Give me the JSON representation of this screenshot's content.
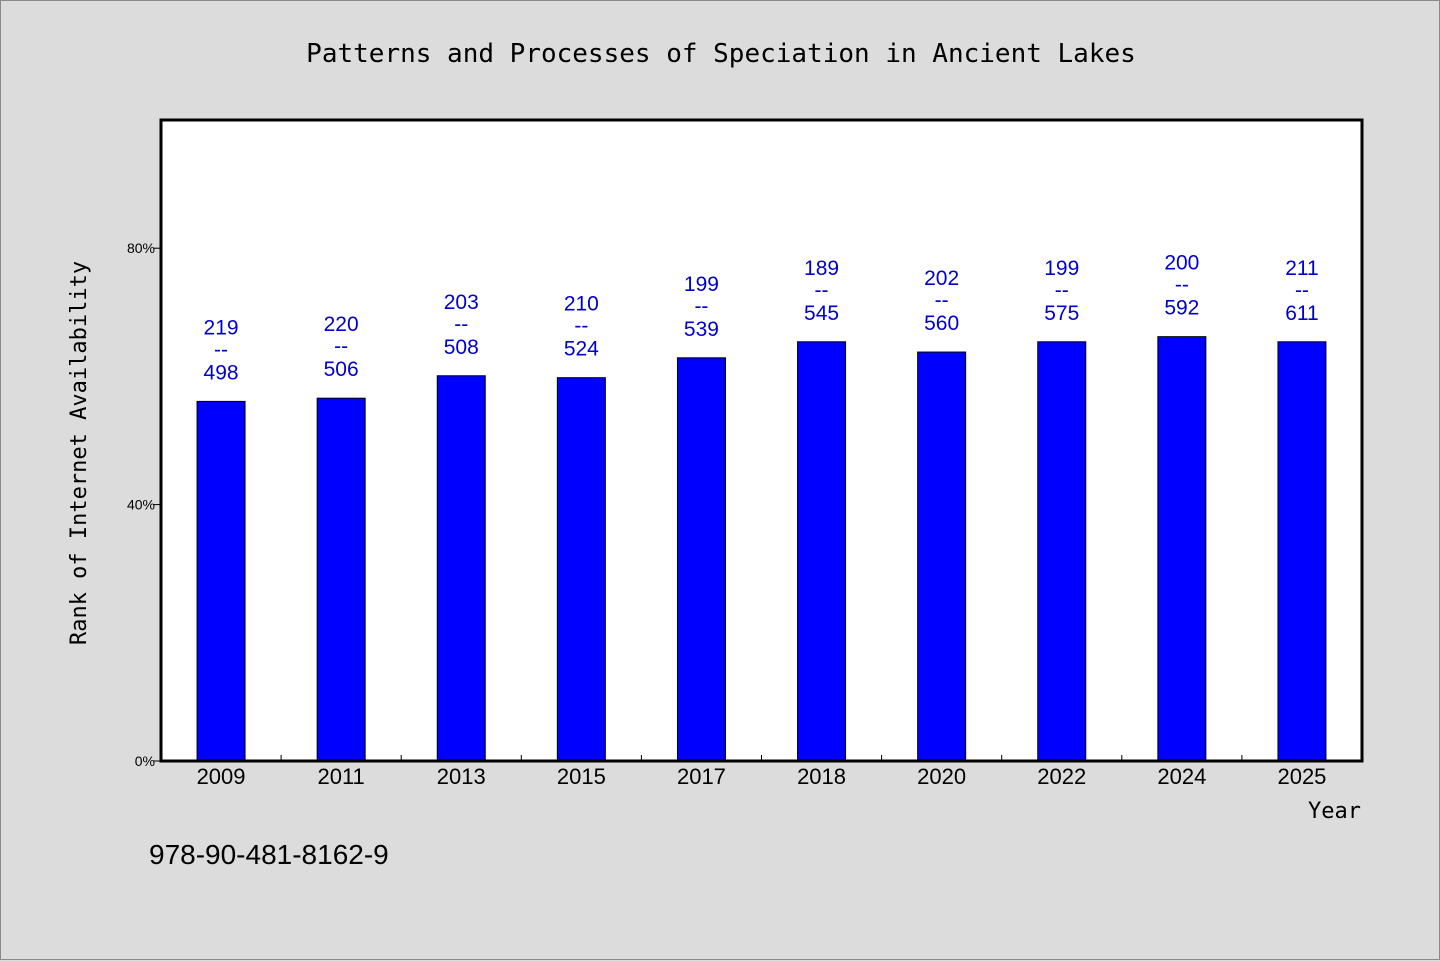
{
  "chart_data": {
    "type": "bar",
    "title": "Patterns and Processes of Speciation in Ancient Lakes",
    "xlabel": "Year",
    "ylabel": "Rank of Internet Availability",
    "categories": [
      "2009",
      "2011",
      "2013",
      "2015",
      "2017",
      "2018",
      "2020",
      "2022",
      "2024",
      "2025"
    ],
    "series": [
      {
        "values": [
          56.1,
          56.6,
          60.1,
          59.8,
          62.9,
          65.4,
          63.8,
          65.4,
          66.2,
          65.4
        ],
        "labels_top": [
          "219",
          "220",
          "203",
          "210",
          "199",
          "189",
          "202",
          "199",
          "200",
          "211"
        ],
        "labels_bottom": [
          "498",
          "506",
          "508",
          "524",
          "539",
          "545",
          "560",
          "575",
          "592",
          "611"
        ],
        "label_separator": "--"
      }
    ],
    "ylim": [
      0,
      100
    ],
    "yticks": [
      0,
      40,
      80
    ],
    "ytick_labels": [
      "0%",
      "40%",
      "80%"
    ],
    "grid": false,
    "bar_color": "#0000ff",
    "label_color": "#0000cc",
    "background_color": "#dcdcdc",
    "plot_background_color": "#ffffff"
  },
  "footer": {
    "isbn": "978-90-481-8162-9"
  }
}
